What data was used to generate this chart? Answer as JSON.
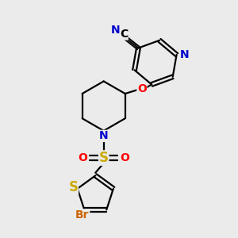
{
  "background_color": "#ebebeb",
  "atom_colors": {
    "C": "#000000",
    "N": "#0000cc",
    "O": "#ff0000",
    "S": "#ccaa00",
    "Br": "#cc6600"
  },
  "figsize": [
    3.0,
    3.0
  ],
  "dpi": 100
}
